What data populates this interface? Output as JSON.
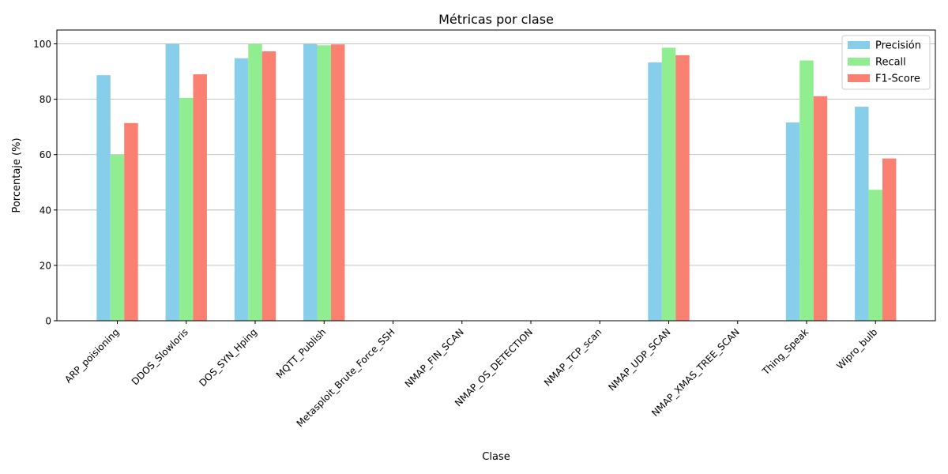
{
  "chart_data": {
    "type": "bar",
    "title": "Métricas por clase",
    "xlabel": "Clase",
    "ylabel": "Porcentaje (%)",
    "ylim": [
      0,
      105
    ],
    "yticks": [
      0,
      20,
      40,
      60,
      80,
      100
    ],
    "grid": "y",
    "legend_position": "top-right",
    "categories": [
      "ARP_poisioning",
      "DDOS_Slowloris",
      "DOS_SYN_Hping",
      "MQTT_Publish",
      "Metasploit_Brute_Force_SSH",
      "NMAP_FIN_SCAN",
      "NMAP_OS_DETECTION",
      "NMAP_TCP_scan",
      "NMAP_UDP_SCAN",
      "NMAP_XMAS_TREE_SCAN",
      "Thing_Speak",
      "Wipro_bulb"
    ],
    "series": [
      {
        "name": "Precisión",
        "color": "#87ceeb",
        "values": [
          88.7,
          100,
          94.8,
          100,
          0,
          0,
          0,
          0,
          93.3,
          0,
          71.6,
          77.3
        ]
      },
      {
        "name": "Recall",
        "color": "#90ee90",
        "values": [
          59.9,
          80.5,
          100,
          99.5,
          0,
          0,
          0,
          0,
          98.6,
          0,
          94.0,
          47.3
        ]
      },
      {
        "name": "F1-Score",
        "color": "#fa8072",
        "values": [
          71.4,
          89.0,
          97.3,
          99.8,
          0,
          0,
          0,
          0,
          95.9,
          0,
          81.1,
          58.6
        ]
      }
    ]
  }
}
